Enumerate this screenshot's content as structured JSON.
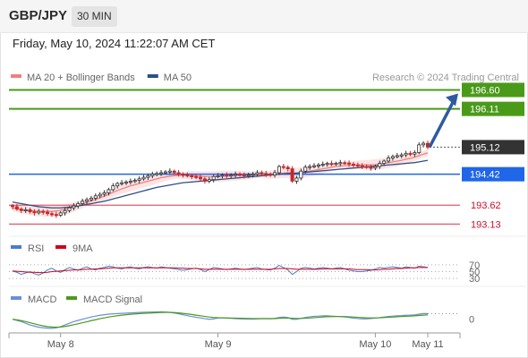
{
  "header": {
    "symbol": "GBP/JPY",
    "timeframe": "30 MIN"
  },
  "datetime": "Friday, May 10, 2024 11:22:07 AM CET",
  "credit": "Research © 2024 Trading Central",
  "colors": {
    "candle_up": "#2f2f2f",
    "candle_down": "#c62828",
    "ma20": "#f08080",
    "bollinger_fill": "#fbd9d9",
    "ma50": "#2c4f88",
    "resistance": "#4a9a1a",
    "pivot": "#1f66e8",
    "support": "#e05a6a",
    "current": "#333333",
    "arrow": "#2e5aa0",
    "rsi": "#4a7bd0",
    "rsi_ma": "#d0021b",
    "macd": "#6a8fd8",
    "macd_signal": "#4a9a1a"
  },
  "chart_data": [
    {
      "type": "candlestick",
      "name": "price",
      "legend": [
        {
          "label": "MA 20 + Bollinger Bands",
          "color": "#f08080"
        },
        {
          "label": "MA 50",
          "color": "#2c4f88"
        }
      ],
      "x_ticks": [
        {
          "label": "May 8",
          "i": 11
        },
        {
          "label": "May 9",
          "i": 47
        },
        {
          "label": "May 10",
          "i": 83
        },
        {
          "label": "May 11",
          "i": 95
        }
      ],
      "ylim": [
        193.0,
        196.75
      ],
      "levels": [
        {
          "value": 196.6,
          "label": "196.60",
          "kind": "resistance"
        },
        {
          "value": 196.11,
          "label": "196.11",
          "kind": "resistance"
        },
        {
          "value": 195.12,
          "label": "195.12",
          "kind": "current"
        },
        {
          "value": 194.42,
          "label": "194.42",
          "kind": "pivot"
        },
        {
          "value": 193.62,
          "label": "193.62",
          "kind": "support"
        },
        {
          "value": 193.13,
          "label": "193.13",
          "kind": "support"
        }
      ],
      "closes": [
        193.58,
        193.52,
        193.48,
        193.5,
        193.45,
        193.42,
        193.46,
        193.44,
        193.4,
        193.38,
        193.36,
        193.42,
        193.48,
        193.55,
        193.6,
        193.66,
        193.72,
        193.76,
        193.8,
        193.86,
        193.9,
        193.94,
        194.02,
        194.12,
        194.18,
        194.2,
        194.22,
        194.24,
        194.26,
        194.3,
        194.34,
        194.38,
        194.42,
        194.44,
        194.46,
        194.48,
        194.5,
        194.46,
        194.42,
        194.4,
        194.38,
        194.36,
        194.34,
        194.3,
        194.24,
        194.28,
        194.36,
        194.38,
        194.4,
        194.38,
        194.4,
        194.42,
        194.4,
        194.38,
        194.4,
        194.42,
        194.46,
        194.44,
        194.42,
        194.4,
        194.46,
        194.62,
        194.6,
        194.56,
        194.24,
        194.32,
        194.5,
        194.6,
        194.62,
        194.64,
        194.66,
        194.68,
        194.7,
        194.69,
        194.7,
        194.72,
        194.71,
        194.68,
        194.66,
        194.64,
        194.62,
        194.6,
        194.58,
        194.62,
        194.7,
        194.76,
        194.84,
        194.88,
        194.9,
        194.92,
        194.96,
        194.94,
        194.98,
        195.18,
        195.22,
        195.12
      ],
      "ma20": [
        193.55,
        193.52,
        193.5,
        193.49,
        193.48,
        193.47,
        193.46,
        193.46,
        193.46,
        193.46,
        193.47,
        193.49,
        193.51,
        193.54,
        193.57,
        193.61,
        193.65,
        193.69,
        193.73,
        193.77,
        193.81,
        193.85,
        193.9,
        193.95,
        194.0,
        194.04,
        194.08,
        194.12,
        194.15,
        194.18,
        194.21,
        194.24,
        194.27,
        194.3,
        194.33,
        194.35,
        194.37,
        194.38,
        194.39,
        194.39,
        194.39,
        194.39,
        194.38,
        194.37,
        194.36,
        194.36,
        194.36,
        194.36,
        194.37,
        194.37,
        194.38,
        194.38,
        194.39,
        194.39,
        194.39,
        194.4,
        194.41,
        194.41,
        194.41,
        194.41,
        194.42,
        194.44,
        194.45,
        194.46,
        194.45,
        194.45,
        194.46,
        194.48,
        194.5,
        194.52,
        194.54,
        194.56,
        194.58,
        194.6,
        194.62,
        194.63,
        194.64,
        194.65,
        194.65,
        194.66,
        194.66,
        194.66,
        194.66,
        194.67,
        194.68,
        194.7,
        194.72,
        194.74,
        194.76,
        194.78,
        194.81,
        194.83,
        194.86,
        194.9,
        194.94,
        194.97
      ],
      "ma50": [
        193.7,
        193.68,
        193.66,
        193.64,
        193.62,
        193.6,
        193.58,
        193.57,
        193.56,
        193.55,
        193.55,
        193.55,
        193.56,
        193.57,
        193.58,
        193.6,
        193.62,
        193.64,
        193.66,
        193.68,
        193.7,
        193.72,
        193.75,
        193.78,
        193.81,
        193.84,
        193.87,
        193.9,
        193.93,
        193.96,
        193.99,
        194.02,
        194.05,
        194.08,
        194.1,
        194.12,
        194.14,
        194.16,
        194.18,
        194.2,
        194.21,
        194.22,
        194.23,
        194.24,
        194.25,
        194.26,
        194.27,
        194.28,
        194.29,
        194.3,
        194.31,
        194.32,
        194.33,
        194.34,
        194.35,
        194.36,
        194.37,
        194.38,
        194.39,
        194.4,
        194.41,
        194.42,
        194.43,
        194.44,
        194.44,
        194.45,
        194.46,
        194.47,
        194.48,
        194.49,
        194.5,
        194.51,
        194.52,
        194.53,
        194.54,
        194.55,
        194.56,
        194.57,
        194.58,
        194.59,
        194.6,
        194.61,
        194.62,
        194.63,
        194.64,
        194.65,
        194.66,
        194.67,
        194.68,
        194.69,
        194.7,
        194.71,
        194.72,
        194.74,
        194.76,
        194.78
      ]
    },
    {
      "type": "line",
      "name": "rsi",
      "legend": [
        {
          "label": "RSI",
          "color": "#4a7bd0"
        },
        {
          "label": "9MA",
          "color": "#d0021b"
        }
      ],
      "y_ticks": [
        {
          "value": 70,
          "label": "70"
        },
        {
          "value": 50,
          "label": "50"
        },
        {
          "value": 30,
          "label": "30"
        }
      ],
      "ylim": [
        20,
        80
      ],
      "rsi": [
        52,
        48,
        42,
        46,
        50,
        44,
        40,
        46,
        55,
        60,
        52,
        48,
        56,
        62,
        58,
        54,
        60,
        64,
        58,
        55,
        60,
        62,
        66,
        64,
        60,
        58,
        62,
        64,
        60,
        58,
        62,
        64,
        62,
        60,
        64,
        62,
        60,
        58,
        56,
        54,
        56,
        58,
        60,
        56,
        50,
        56,
        62,
        60,
        58,
        56,
        58,
        60,
        58,
        56,
        58,
        60,
        62,
        58,
        56,
        55,
        60,
        68,
        62,
        55,
        42,
        50,
        60,
        62,
        60,
        58,
        60,
        62,
        60,
        58,
        60,
        62,
        58,
        54,
        52,
        50,
        50,
        52,
        54,
        58,
        62,
        60,
        62,
        64,
        62,
        60,
        64,
        62,
        60,
        66,
        64,
        62
      ],
      "ma": [
        52,
        51,
        50,
        49,
        48,
        48,
        47,
        47,
        48,
        50,
        51,
        52,
        53,
        54,
        55,
        55,
        56,
        57,
        57,
        58,
        58,
        59,
        60,
        61,
        61,
        61,
        61,
        61,
        61,
        61,
        61,
        61,
        61,
        61,
        61,
        61,
        61,
        61,
        60,
        60,
        59,
        59,
        59,
        58,
        57,
        57,
        57,
        57,
        57,
        57,
        57,
        57,
        57,
        57,
        57,
        57,
        57,
        57,
        57,
        57,
        58,
        59,
        59,
        59,
        58,
        57,
        57,
        57,
        57,
        57,
        57,
        58,
        58,
        58,
        58,
        58,
        58,
        58,
        57,
        56,
        56,
        56,
        55,
        55,
        56,
        57,
        57,
        58,
        59,
        59,
        60,
        61,
        61,
        62,
        62,
        62
      ]
    },
    {
      "type": "line",
      "name": "macd",
      "legend": [
        {
          "label": "MACD",
          "color": "#6a8fd8"
        },
        {
          "label": "MACD Signal",
          "color": "#4a9a1a"
        }
      ],
      "y_ticks": [
        {
          "value": 0,
          "label": "0"
        }
      ],
      "ylim": [
        -0.12,
        0.1
      ],
      "macd": [
        0.0,
        -0.01,
        -0.02,
        -0.035,
        -0.05,
        -0.06,
        -0.07,
        -0.075,
        -0.078,
        -0.08,
        -0.075,
        -0.065,
        -0.05,
        -0.035,
        -0.02,
        -0.01,
        0.0,
        0.01,
        0.02,
        0.028,
        0.035,
        0.04,
        0.045,
        0.048,
        0.05,
        0.052,
        0.054,
        0.056,
        0.058,
        0.06,
        0.062,
        0.063,
        0.064,
        0.065,
        0.066,
        0.064,
        0.06,
        0.055,
        0.048,
        0.04,
        0.032,
        0.024,
        0.018,
        0.012,
        0.005,
        0.0,
        0.004,
        0.01,
        0.012,
        0.01,
        0.008,
        0.006,
        0.004,
        0.003,
        0.002,
        0.002,
        0.004,
        0.006,
        0.006,
        0.005,
        0.008,
        0.016,
        0.02,
        0.015,
        0.0,
        0.0,
        0.008,
        0.016,
        0.022,
        0.026,
        0.028,
        0.03,
        0.03,
        0.028,
        0.026,
        0.024,
        0.02,
        0.015,
        0.01,
        0.006,
        0.004,
        0.004,
        0.006,
        0.01,
        0.015,
        0.02,
        0.025,
        0.028,
        0.03,
        0.032,
        0.035,
        0.036,
        0.038,
        0.045,
        0.05,
        0.05
      ],
      "signal": [
        0.0,
        -0.005,
        -0.012,
        -0.02,
        -0.03,
        -0.04,
        -0.05,
        -0.058,
        -0.064,
        -0.068,
        -0.07,
        -0.068,
        -0.063,
        -0.056,
        -0.048,
        -0.04,
        -0.03,
        -0.022,
        -0.012,
        -0.004,
        0.005,
        0.012,
        0.02,
        0.026,
        0.031,
        0.036,
        0.04,
        0.044,
        0.047,
        0.05,
        0.052,
        0.054,
        0.056,
        0.058,
        0.06,
        0.061,
        0.061,
        0.059,
        0.056,
        0.052,
        0.047,
        0.042,
        0.036,
        0.031,
        0.025,
        0.02,
        0.016,
        0.014,
        0.013,
        0.012,
        0.011,
        0.01,
        0.009,
        0.008,
        0.007,
        0.006,
        0.006,
        0.006,
        0.006,
        0.006,
        0.006,
        0.008,
        0.01,
        0.011,
        0.009,
        0.007,
        0.007,
        0.009,
        0.011,
        0.014,
        0.017,
        0.02,
        0.022,
        0.023,
        0.024,
        0.024,
        0.024,
        0.022,
        0.02,
        0.017,
        0.015,
        0.013,
        0.012,
        0.012,
        0.013,
        0.015,
        0.017,
        0.019,
        0.022,
        0.024,
        0.026,
        0.028,
        0.03,
        0.033,
        0.036,
        0.039
      ]
    }
  ]
}
